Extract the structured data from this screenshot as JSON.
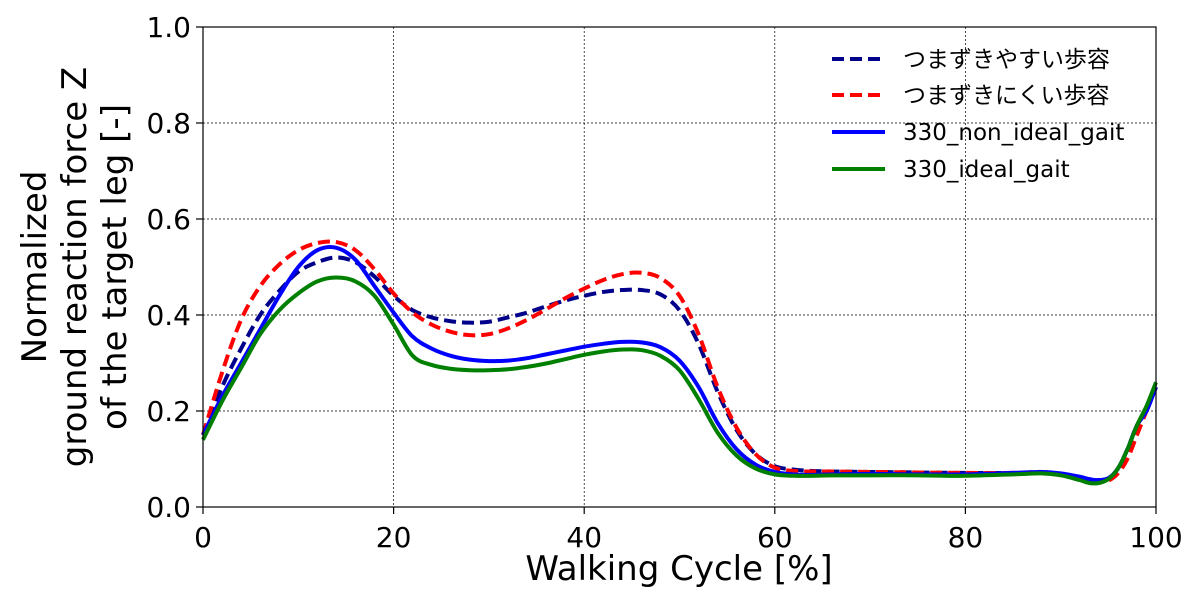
{
  "chart_data": {
    "type": "line",
    "title": "",
    "xlabel": "Walking Cycle [%]",
    "ylabel_lines": [
      "Normalized",
      "ground reaction force Z",
      "of the target leg [-]"
    ],
    "xlim": [
      0,
      100
    ],
    "ylim": [
      0.0,
      1.0
    ],
    "xticks": [
      0,
      20,
      40,
      60,
      80,
      100
    ],
    "yticks": [
      0.0,
      0.2,
      0.4,
      0.6,
      0.8,
      1.0
    ],
    "xtick_labels": [
      "0",
      "20",
      "40",
      "60",
      "80",
      "100"
    ],
    "ytick_labels": [
      "0.0",
      "0.2",
      "0.4",
      "0.6",
      "0.8",
      "1.0"
    ],
    "grid": true,
    "legend_position": "top-right",
    "series": [
      {
        "name": "つまずきやすい歩容",
        "color": "#00008b",
        "style": "dashed",
        "x": [
          0,
          2,
          4,
          6,
          8,
          10,
          12,
          14,
          16,
          18,
          20,
          22,
          24,
          26,
          28,
          30,
          32,
          34,
          36,
          38,
          40,
          42,
          44,
          46,
          48,
          50,
          52,
          54,
          56,
          58,
          60,
          62,
          64,
          66,
          70,
          75,
          80,
          85,
          88,
          90,
          92,
          93,
          94,
          95,
          96,
          97,
          98,
          99,
          100
        ],
        "y": [
          0.15,
          0.25,
          0.33,
          0.4,
          0.45,
          0.49,
          0.51,
          0.52,
          0.51,
          0.48,
          0.44,
          0.41,
          0.395,
          0.387,
          0.384,
          0.386,
          0.395,
          0.405,
          0.418,
          0.43,
          0.44,
          0.448,
          0.452,
          0.452,
          0.443,
          0.41,
          0.34,
          0.24,
          0.16,
          0.11,
          0.085,
          0.078,
          0.075,
          0.074,
          0.073,
          0.072,
          0.071,
          0.071,
          0.072,
          0.068,
          0.062,
          0.058,
          0.056,
          0.06,
          0.08,
          0.12,
          0.17,
          0.2,
          0.25
        ]
      },
      {
        "name": "つまずきにくい歩容",
        "color": "#ff0000",
        "style": "dashed",
        "x": [
          0,
          2,
          4,
          6,
          8,
          10,
          12,
          14,
          16,
          18,
          20,
          22,
          24,
          26,
          28,
          30,
          32,
          34,
          36,
          38,
          40,
          42,
          44,
          46,
          48,
          50,
          52,
          54,
          56,
          58,
          60,
          62,
          64,
          66,
          70,
          75,
          80,
          85,
          88,
          90,
          92,
          93,
          94,
          95,
          96,
          97,
          98,
          99,
          100
        ],
        "y": [
          0.15,
          0.28,
          0.39,
          0.46,
          0.505,
          0.535,
          0.55,
          0.552,
          0.535,
          0.495,
          0.445,
          0.405,
          0.38,
          0.365,
          0.358,
          0.36,
          0.372,
          0.39,
          0.412,
          0.435,
          0.455,
          0.473,
          0.485,
          0.488,
          0.477,
          0.44,
          0.36,
          0.25,
          0.165,
          0.11,
          0.082,
          0.075,
          0.074,
          0.074,
          0.073,
          0.072,
          0.071,
          0.071,
          0.073,
          0.068,
          0.06,
          0.055,
          0.052,
          0.055,
          0.07,
          0.1,
          0.15,
          0.2,
          0.25
        ]
      },
      {
        "name": "330_non_ideal_gait",
        "color": "#0000ff",
        "style": "solid",
        "x": [
          0,
          2,
          4,
          6,
          8,
          10,
          12,
          14,
          16,
          18,
          20,
          22,
          24,
          26,
          28,
          30,
          32,
          34,
          36,
          38,
          40,
          42,
          44,
          46,
          48,
          50,
          52,
          54,
          56,
          58,
          60,
          62,
          64,
          66,
          70,
          75,
          80,
          85,
          88,
          90,
          92,
          93,
          94,
          95,
          96,
          97,
          98,
          99,
          100
        ],
        "y": [
          0.15,
          0.23,
          0.3,
          0.37,
          0.44,
          0.5,
          0.535,
          0.54,
          0.515,
          0.46,
          0.405,
          0.355,
          0.33,
          0.315,
          0.307,
          0.304,
          0.305,
          0.31,
          0.318,
          0.326,
          0.334,
          0.34,
          0.344,
          0.343,
          0.333,
          0.305,
          0.25,
          0.175,
          0.12,
          0.088,
          0.073,
          0.068,
          0.067,
          0.068,
          0.069,
          0.068,
          0.068,
          0.071,
          0.073,
          0.07,
          0.063,
          0.058,
          0.056,
          0.06,
          0.08,
          0.12,
          0.17,
          0.2,
          0.25
        ]
      },
      {
        "name": "330_ideal_gait",
        "color": "#008000",
        "style": "solid",
        "x": [
          0,
          2,
          4,
          6,
          8,
          10,
          12,
          14,
          16,
          18,
          20,
          22,
          24,
          26,
          28,
          30,
          32,
          34,
          36,
          38,
          40,
          42,
          44,
          46,
          48,
          50,
          52,
          54,
          56,
          58,
          60,
          62,
          64,
          66,
          70,
          75,
          80,
          85,
          88,
          90,
          92,
          93,
          94,
          95,
          96,
          97,
          98,
          99,
          100
        ],
        "y": [
          0.14,
          0.22,
          0.29,
          0.36,
          0.41,
          0.445,
          0.47,
          0.478,
          0.47,
          0.44,
          0.38,
          0.315,
          0.296,
          0.288,
          0.285,
          0.285,
          0.287,
          0.292,
          0.299,
          0.308,
          0.317,
          0.324,
          0.328,
          0.327,
          0.315,
          0.285,
          0.225,
          0.155,
          0.107,
          0.08,
          0.068,
          0.065,
          0.065,
          0.066,
          0.066,
          0.066,
          0.065,
          0.068,
          0.07,
          0.066,
          0.056,
          0.05,
          0.05,
          0.058,
          0.08,
          0.12,
          0.17,
          0.21,
          0.26
        ]
      }
    ]
  }
}
